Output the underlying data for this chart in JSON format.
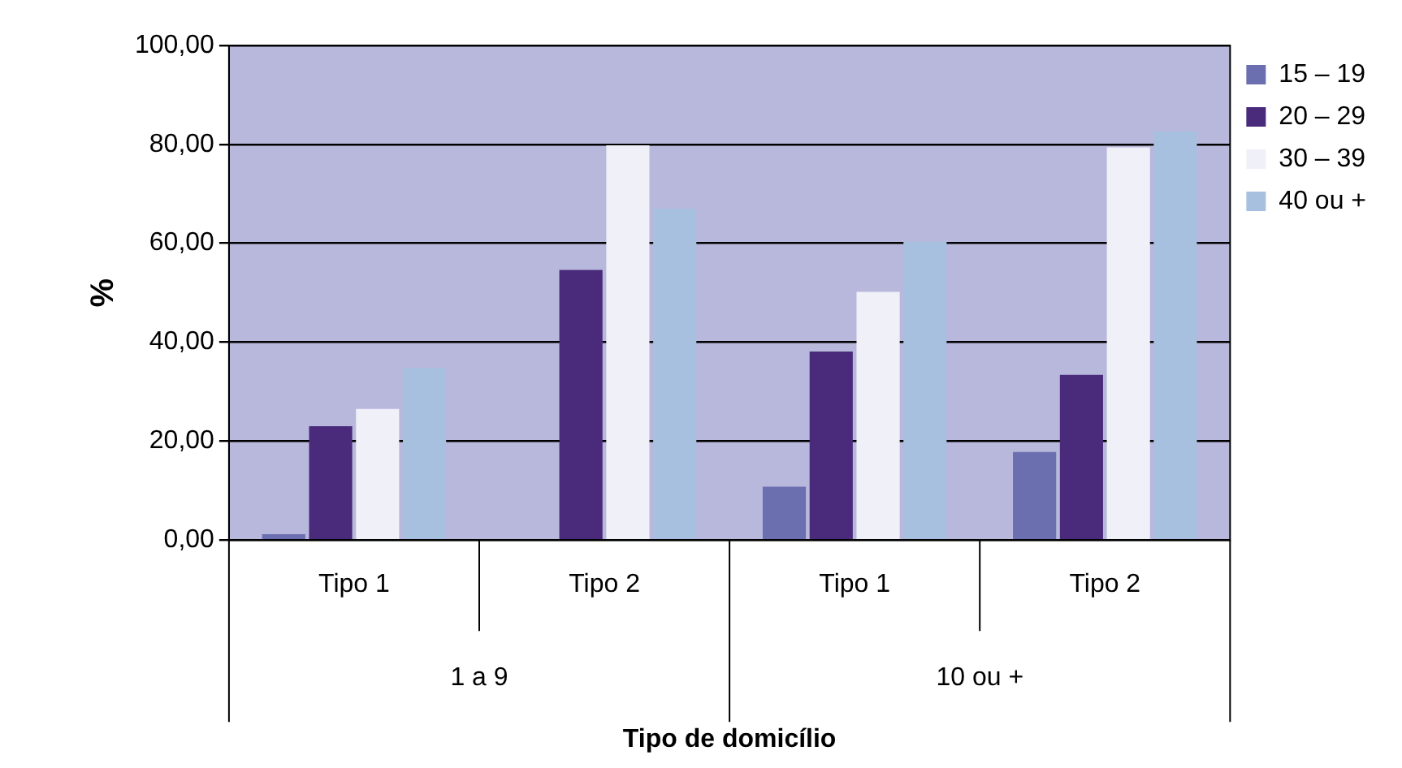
{
  "chart_data": {
    "type": "bar",
    "xlabel": "Tipo de domicílio",
    "ylabel": "%",
    "categories": [
      "Tipo 1",
      "Tipo 2",
      "Tipo 1",
      "Tipo 2"
    ],
    "series": [
      {
        "name": "15 – 19",
        "color": "#6b6fb0",
        "values": [
          1.2,
          null,
          10.8,
          17.8
        ]
      },
      {
        "name": "20 – 29",
        "color": "#4a2a7a",
        "values": [
          23,
          54.6,
          38.1,
          33.4
        ]
      },
      {
        "name": "30 – 39",
        "color": "#f0f0f8",
        "values": [
          26.5,
          79.8,
          50.2,
          79.4
        ]
      },
      {
        "name": "40 ou +",
        "color": "#a8c0e0",
        "values": [
          34.8,
          67,
          60.3,
          82.6
        ]
      }
    ],
    "ylim": [
      0,
      100
    ],
    "yticks": [
      {
        "value": 0,
        "label": "0,00"
      },
      {
        "value": 20,
        "label": "20,00"
      },
      {
        "value": 40,
        "label": "40,00"
      },
      {
        "value": 60,
        "label": "60,00"
      },
      {
        "value": 80,
        "label": "80,00"
      },
      {
        "value": 100,
        "label": "100,00"
      }
    ],
    "annotations": [
      "1 a 9",
      "10 ou +"
    ],
    "grid": "y",
    "legend": "top right"
  }
}
